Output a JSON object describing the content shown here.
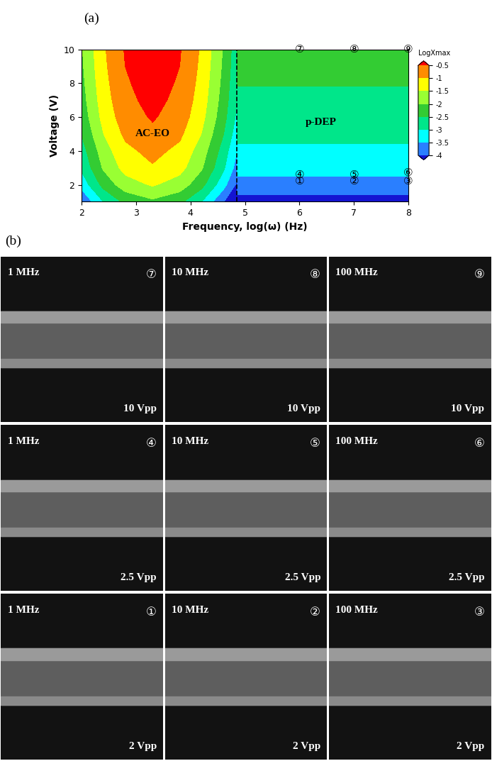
{
  "chart_data": {
    "type": "contour",
    "panel_label": "(a)",
    "x_label": "Frequency, log(ω) (Hz)",
    "y_label": "Voltage (V)",
    "xlim": [
      2,
      8
    ],
    "xticks": [
      2,
      3,
      4,
      5,
      6,
      7,
      8
    ],
    "ylim": [
      1,
      10
    ],
    "yticks": [
      2,
      4,
      6,
      8,
      10
    ],
    "x": [
      2.0,
      2.4,
      2.8,
      3.3,
      3.8,
      4.2,
      4.6,
      4.85
    ],
    "y": [
      1,
      2,
      3,
      4,
      5,
      6,
      7,
      8,
      9,
      10
    ],
    "cells": [
      [
        -3.96,
        -2.99,
        -2.38,
        -2.1,
        -2.38,
        -2.99,
        -3.96,
        -4.74
      ],
      [
        -3.31,
        -2.34,
        -1.73,
        -1.45,
        -1.73,
        -2.34,
        -3.31,
        -4.09
      ],
      [
        -2.91,
        -1.94,
        -1.33,
        -1.05,
        -1.33,
        -1.94,
        -2.91,
        -3.69
      ],
      [
        -2.71,
        -1.74,
        -1.13,
        -0.85,
        -1.13,
        -1.74,
        -2.71,
        -3.49
      ],
      [
        -2.48,
        -1.51,
        -0.9,
        -0.62,
        -0.9,
        -1.51,
        -2.48,
        -3.26
      ],
      [
        -2.31,
        -1.34,
        -0.73,
        -0.45,
        -0.73,
        -1.34,
        -2.31,
        -3.09
      ],
      [
        -2.21,
        -1.24,
        -0.63,
        -0.35,
        -0.63,
        -1.24,
        -2.21,
        -2.99
      ],
      [
        -2.14,
        -1.17,
        -0.56,
        -0.28,
        -0.56,
        -1.17,
        -2.14,
        -2.92
      ],
      [
        -2.08,
        -1.11,
        -0.5,
        -0.22,
        -0.5,
        -1.11,
        -2.08,
        -2.86
      ],
      [
        -2.04,
        -1.07,
        -0.46,
        -0.18,
        -0.46,
        -1.07,
        -2.04,
        -2.82
      ]
    ],
    "levels": [
      -4,
      -3.5,
      -3,
      -2.5,
      -2,
      -1.5,
      -1,
      -0.5
    ],
    "colors": [
      "#1414d2",
      "#2a7fff",
      "#00ffff",
      "#00e68a",
      "#33cc33",
      "#99ff33",
      "#ffff00",
      "#ff8c00",
      "#ff0000"
    ],
    "colorbar_title": "LogXmax",
    "colorbar_ticks": [
      -0.5,
      -1,
      -1.5,
      -2,
      -2.5,
      -3,
      -3.5,
      -4
    ],
    "boundary_x": 4.85,
    "p_dep_bands": [
      {
        "from": 1,
        "to": 1.4,
        "value": -4.2
      },
      {
        "from": 1.4,
        "to": 2.5,
        "value": -3.75
      },
      {
        "from": 2.5,
        "to": 4.4,
        "value": -3.25
      },
      {
        "from": 4.4,
        "to": 7.8,
        "value": -2.75
      },
      {
        "from": 7.8,
        "to": 10,
        "value": -2.25
      }
    ],
    "annotations": [
      {
        "text": "AC-EO",
        "x": 3.3,
        "y": 5
      },
      {
        "text": "p-DEP",
        "x": 6.4,
        "y": 5.7
      }
    ],
    "markers": [
      {
        "text": "⑦",
        "x": 6,
        "y": 10
      },
      {
        "text": "⑧",
        "x": 7,
        "y": 10
      },
      {
        "text": "⑨",
        "x": 8,
        "y": 10
      },
      {
        "text": "④",
        "x": 6,
        "y": 2.6
      },
      {
        "text": "⑤",
        "x": 7,
        "y": 2.6
      },
      {
        "text": "⑥",
        "x": 8,
        "y": 2.7
      },
      {
        "text": "①",
        "x": 6,
        "y": 2.2
      },
      {
        "text": "②",
        "x": 7,
        "y": 2.2
      },
      {
        "text": "③",
        "x": 8,
        "y": 2.2
      }
    ]
  },
  "images": {
    "panel_label": "(b)",
    "rows": [
      [
        {
          "marker": "⑦",
          "frequency": "1 MHz",
          "voltage": "10 Vpp"
        },
        {
          "marker": "⑧",
          "frequency": "10 MHz",
          "voltage": "10 Vpp"
        },
        {
          "marker": "⑨",
          "frequency": "100 MHz",
          "voltage": "10 Vpp"
        }
      ],
      [
        {
          "marker": "④",
          "frequency": "1 MHz",
          "voltage": "2.5 Vpp"
        },
        {
          "marker": "⑤",
          "frequency": "10 MHz",
          "voltage": "2.5 Vpp"
        },
        {
          "marker": "⑥",
          "frequency": "100 MHz",
          "voltage": "2.5 Vpp"
        }
      ],
      [
        {
          "marker": "①",
          "frequency": "1 MHz",
          "voltage": "2 Vpp"
        },
        {
          "marker": "②",
          "frequency": "10 MHz",
          "voltage": "2 Vpp"
        },
        {
          "marker": "③",
          "frequency": "100 MHz",
          "voltage": "2 Vpp"
        }
      ]
    ]
  }
}
